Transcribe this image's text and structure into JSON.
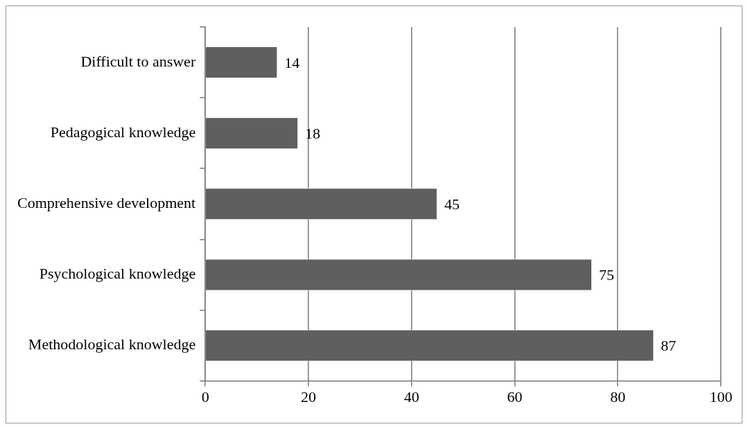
{
  "chart_data": {
    "type": "bar",
    "orientation": "horizontal",
    "categories": [
      "Difficult to answer",
      "Pedagogical knowledge",
      "Comprehensive development",
      "Psychological knowledge",
      "Methodological knowledge"
    ],
    "values": [
      14,
      18,
      45,
      75,
      87
    ],
    "color": "#5f5f5f",
    "xlim": [
      0,
      100
    ],
    "xticks": [
      0,
      20,
      40,
      60,
      80,
      100
    ],
    "grid": "x",
    "data_labels": true,
    "legend": false
  }
}
